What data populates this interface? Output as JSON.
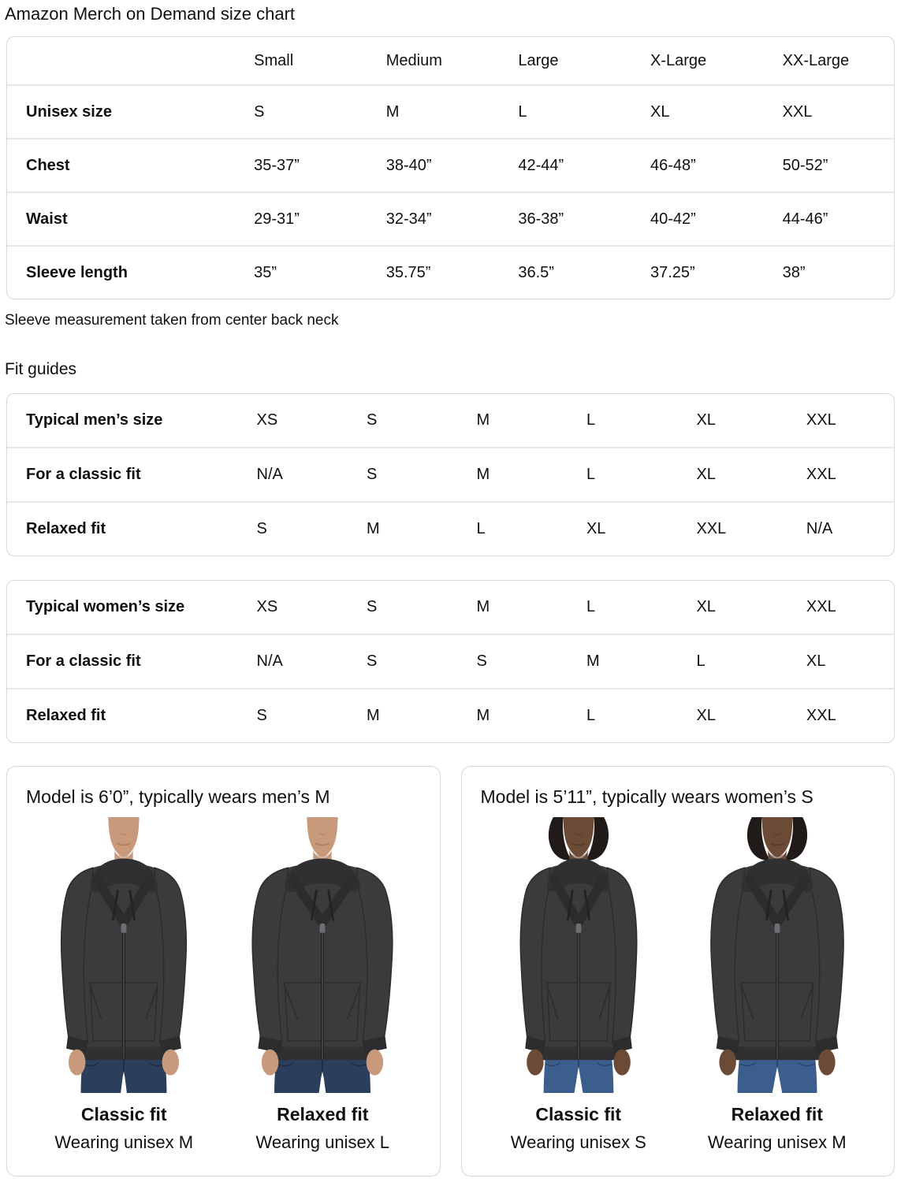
{
  "title": "Amazon Merch on Demand size chart",
  "size_table": {
    "columns": [
      "Small",
      "Medium",
      "Large",
      "X-Large",
      "XX-Large"
    ],
    "rows": [
      {
        "label": "Unisex size",
        "values": [
          "S",
          "M",
          "L",
          "XL",
          "XXL"
        ]
      },
      {
        "label": "Chest",
        "values": [
          "35-37”",
          "38-40”",
          "42-44”",
          "46-48”",
          "50-52”"
        ]
      },
      {
        "label": "Waist",
        "values": [
          "29-31”",
          "32-34”",
          "36-38”",
          "40-42”",
          "44-46”"
        ]
      },
      {
        "label": "Sleeve length",
        "values": [
          "35”",
          "35.75”",
          "36.5”",
          "37.25”",
          "38”"
        ]
      }
    ]
  },
  "sleeve_note": "Sleeve measurement taken from center back neck",
  "fit_guides_heading": "Fit guides",
  "fit_guide_men": {
    "rows": [
      {
        "label": "Typical men’s size",
        "values": [
          "XS",
          "S",
          "M",
          "L",
          "XL",
          "XXL"
        ]
      },
      {
        "label": "For a classic fit",
        "values": [
          "N/A",
          "S",
          "M",
          "L",
          "XL",
          "XXL"
        ]
      },
      {
        "label": "Relaxed fit",
        "values": [
          "S",
          "M",
          "L",
          "XL",
          "XXL",
          "N/A"
        ]
      }
    ]
  },
  "fit_guide_women": {
    "rows": [
      {
        "label": "Typical women’s size",
        "values": [
          "XS",
          "S",
          "M",
          "L",
          "XL",
          "XXL"
        ]
      },
      {
        "label": "For a classic fit",
        "values": [
          "N/A",
          "S",
          "S",
          "M",
          "L",
          "XL"
        ]
      },
      {
        "label": "Relaxed fit",
        "values": [
          "S",
          "M",
          "M",
          "L",
          "XL",
          "XXL"
        ]
      }
    ]
  },
  "model_boxes": [
    {
      "caption": "Model is 6’0”, typically wears men’s M",
      "figures": [
        {
          "fit_label": "Classic fit",
          "wearing": "Wearing unisex M"
        },
        {
          "fit_label": "Relaxed fit",
          "wearing": "Wearing unisex L"
        }
      ]
    },
    {
      "caption": "Model is 5’11”, typically wears women’s S",
      "figures": [
        {
          "fit_label": "Classic fit",
          "wearing": "Wearing unisex S"
        },
        {
          "fit_label": "Relaxed fit",
          "wearing": "Wearing unisex M"
        }
      ]
    }
  ],
  "colors": {
    "text": "#0F1111",
    "table_border": "#D5D9D9",
    "row_divider": "#E7E7E7",
    "hoodie": "#3B3B3D",
    "mens_jeans": "#2B3E5C",
    "womens_jeans": "#3C5E8C"
  }
}
